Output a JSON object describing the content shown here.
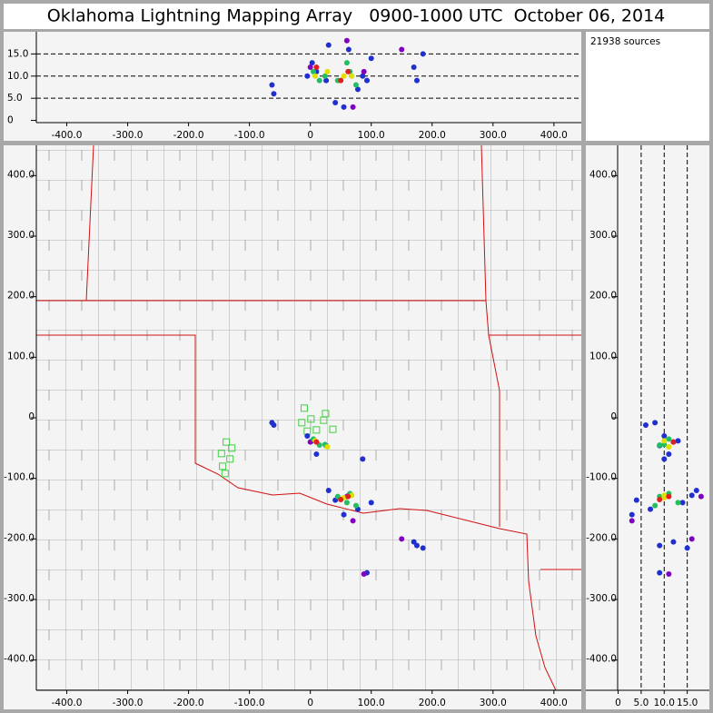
{
  "chart_data": {
    "type": "scatter",
    "title": "Oklahoma Lightning Mapping Array   0900-1000 UTC  October 06, 2014",
    "annotation": "21938 sources",
    "series": [
      {
        "color": "#2030d0",
        "x": [
          -63,
          -60,
          3,
          26,
          10,
          41,
          63,
          78,
          175,
          170,
          93,
          86,
          100,
          30,
          55,
          -5,
          185
        ],
        "y": [
          -8,
          -12,
          -38,
          -46,
          -60,
          -136,
          -128,
          -151,
          -211,
          -205,
          -256,
          -68,
          -140,
          -120,
          -160,
          -30,
          -215
        ],
        "z": [
          8,
          6,
          13,
          9,
          11,
          4,
          16,
          7,
          9,
          12,
          9,
          10,
          14,
          17,
          3,
          10,
          15
        ]
      },
      {
        "color": "#8000c0",
        "x": [
          0,
          60,
          88,
          150,
          70
        ],
        "y": [
          -40,
          -130,
          -258,
          -200,
          -170
        ],
        "z": [
          12,
          18,
          11,
          16,
          3
        ]
      },
      {
        "color": "#20c060",
        "x": [
          5,
          24,
          45,
          65,
          75,
          60,
          15
        ],
        "y": [
          -35,
          -44,
          -130,
          -125,
          -145,
          -140,
          -45
        ],
        "z": [
          11,
          10,
          9,
          11,
          8,
          13,
          9
        ]
      },
      {
        "color": "#e0e000",
        "x": [
          8,
          28,
          55,
          68
        ],
        "y": [
          -38,
          -48,
          -132,
          -128
        ],
        "z": [
          10,
          11,
          10,
          10
        ]
      },
      {
        "color": "#e02020",
        "x": [
          10,
          62,
          50
        ],
        "y": [
          -40,
          -130,
          -135
        ],
        "z": [
          12,
          11,
          9
        ]
      }
    ],
    "stations": {
      "color": "#40d040",
      "x": [
        -10,
        1,
        -14,
        22,
        25,
        37,
        10,
        -5,
        -138,
        -129,
        -146,
        -132,
        -144,
        -140
      ],
      "y": [
        16,
        -2,
        -8,
        -4,
        7,
        -19,
        -20,
        -22,
        -40,
        -50,
        -59,
        -68,
        -80,
        -92
      ]
    },
    "xlim": [
      -450,
      445
    ],
    "ylim": [
      -450,
      450
    ],
    "zlim_top": [
      -0.5,
      20
    ],
    "zlim_side": [
      -7,
      19.6
    ],
    "xticks": [
      {
        "value": -400,
        "label": "-400.0"
      },
      {
        "value": -300,
        "label": "-300.0"
      },
      {
        "value": -200,
        "label": "-200.0"
      },
      {
        "value": -100,
        "label": "-100.0"
      },
      0,
      {
        "value": 100,
        "label": "100.0"
      },
      {
        "value": 200,
        "label": "200.0"
      },
      {
        "value": 300,
        "label": "300.0"
      },
      {
        "value": 400,
        "label": "400.0"
      }
    ],
    "yticks": [
      {
        "value": 400,
        "label": "400.0"
      },
      {
        "value": 300,
        "label": "300.0"
      },
      {
        "value": 200,
        "label": "200.0"
      },
      {
        "value": 100,
        "label": "100.0"
      },
      0,
      {
        "value": -100,
        "label": "-100.0"
      },
      {
        "value": -200,
        "label": "-200.0"
      },
      {
        "value": -300,
        "label": "-300.0"
      },
      {
        "value": -400,
        "label": "-400.0"
      }
    ],
    "zticks": [
      0,
      {
        "value": 5,
        "label": "5.0"
      },
      {
        "value": 10,
        "label": "10.0"
      },
      {
        "value": 15,
        "label": "15.0"
      }
    ],
    "grid": true
  }
}
